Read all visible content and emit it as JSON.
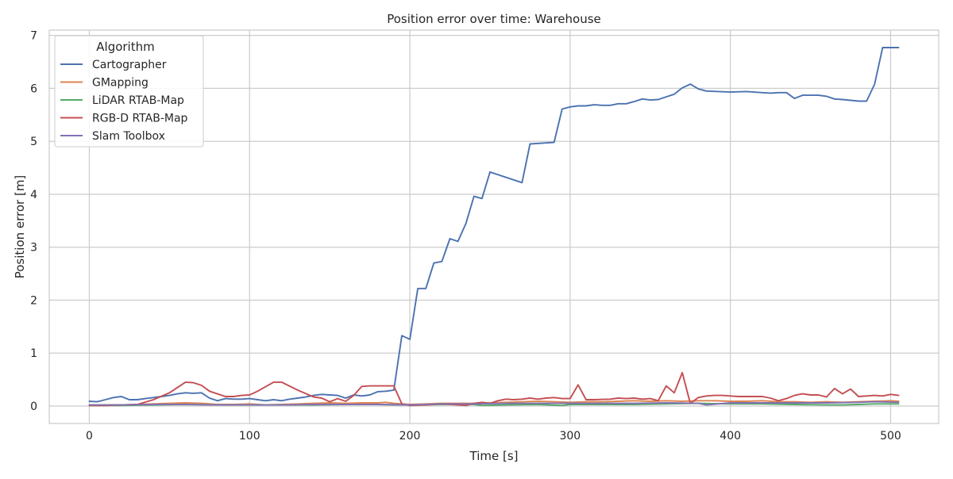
{
  "chart_data": {
    "type": "line",
    "title": "Position error over time: Warehouse",
    "xlabel": "Time [s]",
    "ylabel": "Position error [m]",
    "xlim": [
      -25,
      530
    ],
    "ylim": [
      -0.33,
      7.1
    ],
    "xticks": [
      0,
      100,
      200,
      300,
      400,
      500
    ],
    "yticks": [
      0,
      1,
      2,
      3,
      4,
      5,
      6,
      7
    ],
    "grid": true,
    "legend": {
      "title": "Algorithm",
      "position": "top-left"
    },
    "series": [
      {
        "name": "Cartographer",
        "color": "#4c72b0",
        "points": [
          [
            0,
            0.09
          ],
          [
            5,
            0.08
          ],
          [
            10,
            0.12
          ],
          [
            15,
            0.16
          ],
          [
            20,
            0.18
          ],
          [
            25,
            0.12
          ],
          [
            30,
            0.12
          ],
          [
            35,
            0.14
          ],
          [
            40,
            0.16
          ],
          [
            45,
            0.18
          ],
          [
            50,
            0.2
          ],
          [
            55,
            0.23
          ],
          [
            60,
            0.25
          ],
          [
            65,
            0.24
          ],
          [
            70,
            0.25
          ],
          [
            75,
            0.15
          ],
          [
            80,
            0.1
          ],
          [
            85,
            0.14
          ],
          [
            90,
            0.13
          ],
          [
            95,
            0.13
          ],
          [
            100,
            0.14
          ],
          [
            105,
            0.12
          ],
          [
            110,
            0.1
          ],
          [
            115,
            0.12
          ],
          [
            120,
            0.1
          ],
          [
            125,
            0.13
          ],
          [
            130,
            0.15
          ],
          [
            135,
            0.17
          ],
          [
            140,
            0.2
          ],
          [
            145,
            0.22
          ],
          [
            150,
            0.21
          ],
          [
            155,
            0.2
          ],
          [
            160,
            0.15
          ],
          [
            165,
            0.21
          ],
          [
            170,
            0.19
          ],
          [
            175,
            0.21
          ],
          [
            180,
            0.27
          ],
          [
            185,
            0.28
          ],
          [
            190,
            0.3
          ],
          [
            195,
            1.33
          ],
          [
            200,
            1.26
          ],
          [
            205,
            2.22
          ],
          [
            210,
            2.22
          ],
          [
            215,
            2.7
          ],
          [
            220,
            2.73
          ],
          [
            225,
            3.16
          ],
          [
            230,
            3.11
          ],
          [
            235,
            3.45
          ],
          [
            240,
            3.96
          ],
          [
            245,
            3.92
          ],
          [
            250,
            4.42
          ],
          [
            270,
            4.22
          ],
          [
            275,
            4.95
          ],
          [
            285,
            4.97
          ],
          [
            290,
            4.98
          ],
          [
            295,
            5.61
          ],
          [
            300,
            5.65
          ],
          [
            305,
            5.67
          ],
          [
            310,
            5.67
          ],
          [
            315,
            5.69
          ],
          [
            320,
            5.68
          ],
          [
            325,
            5.68
          ],
          [
            330,
            5.71
          ],
          [
            335,
            5.71
          ],
          [
            340,
            5.75
          ],
          [
            345,
            5.8
          ],
          [
            350,
            5.78
          ],
          [
            355,
            5.79
          ],
          [
            360,
            5.84
          ],
          [
            365,
            5.89
          ],
          [
            370,
            6.01
          ],
          [
            375,
            6.08
          ],
          [
            380,
            5.99
          ],
          [
            385,
            5.95
          ],
          [
            400,
            5.93
          ],
          [
            410,
            5.94
          ],
          [
            420,
            5.92
          ],
          [
            425,
            5.91
          ],
          [
            430,
            5.92
          ],
          [
            435,
            5.92
          ],
          [
            440,
            5.81
          ],
          [
            445,
            5.87
          ],
          [
            455,
            5.87
          ],
          [
            460,
            5.85
          ],
          [
            465,
            5.8
          ],
          [
            470,
            5.79
          ],
          [
            480,
            5.76
          ],
          [
            485,
            5.76
          ],
          [
            490,
            6.08
          ],
          [
            495,
            6.77
          ],
          [
            505,
            6.77
          ]
        ]
      },
      {
        "name": "GMapping",
        "color": "#dd8452",
        "points": [
          [
            0,
            0.01
          ],
          [
            10,
            0.02
          ],
          [
            20,
            0.02
          ],
          [
            30,
            0.03
          ],
          [
            40,
            0.04
          ],
          [
            50,
            0.05
          ],
          [
            60,
            0.06
          ],
          [
            70,
            0.05
          ],
          [
            80,
            0.03
          ],
          [
            90,
            0.03
          ],
          [
            100,
            0.04
          ],
          [
            110,
            0.02
          ],
          [
            120,
            0.03
          ],
          [
            130,
            0.04
          ],
          [
            140,
            0.05
          ],
          [
            150,
            0.06
          ],
          [
            160,
            0.05
          ],
          [
            170,
            0.06
          ],
          [
            180,
            0.06
          ],
          [
            185,
            0.07
          ],
          [
            190,
            0.05
          ],
          [
            200,
            0.03
          ],
          [
            210,
            0.04
          ],
          [
            220,
            0.05
          ],
          [
            230,
            0.05
          ],
          [
            240,
            0.05
          ],
          [
            250,
            0.06
          ],
          [
            260,
            0.07
          ],
          [
            270,
            0.08
          ],
          [
            280,
            0.09
          ],
          [
            290,
            0.08
          ],
          [
            300,
            0.07
          ],
          [
            310,
            0.08
          ],
          [
            320,
            0.08
          ],
          [
            330,
            0.09
          ],
          [
            340,
            0.1
          ],
          [
            350,
            0.09
          ],
          [
            360,
            0.1
          ],
          [
            370,
            0.09
          ],
          [
            380,
            0.1
          ],
          [
            390,
            0.1
          ],
          [
            400,
            0.09
          ],
          [
            410,
            0.09
          ],
          [
            420,
            0.1
          ],
          [
            430,
            0.08
          ],
          [
            440,
            0.08
          ],
          [
            450,
            0.07
          ],
          [
            460,
            0.08
          ],
          [
            470,
            0.07
          ],
          [
            480,
            0.08
          ],
          [
            490,
            0.09
          ],
          [
            500,
            0.1
          ],
          [
            505,
            0.09
          ]
        ]
      },
      {
        "name": "LiDAR RTAB-Map",
        "color": "#55a868",
        "points": [
          [
            0,
            0.01
          ],
          [
            20,
            0.01
          ],
          [
            40,
            0.02
          ],
          [
            60,
            0.03
          ],
          [
            80,
            0.02
          ],
          [
            100,
            0.02
          ],
          [
            120,
            0.02
          ],
          [
            140,
            0.02
          ],
          [
            160,
            0.03
          ],
          [
            180,
            0.03
          ],
          [
            200,
            0.02
          ],
          [
            220,
            0.03
          ],
          [
            240,
            0.03
          ],
          [
            245,
            0.01
          ],
          [
            260,
            0.02
          ],
          [
            280,
            0.03
          ],
          [
            295,
            0.01
          ],
          [
            300,
            0.03
          ],
          [
            320,
            0.03
          ],
          [
            340,
            0.03
          ],
          [
            360,
            0.04
          ],
          [
            380,
            0.05
          ],
          [
            400,
            0.04
          ],
          [
            420,
            0.04
          ],
          [
            440,
            0.03
          ],
          [
            460,
            0.02
          ],
          [
            470,
            0.02
          ],
          [
            480,
            0.03
          ],
          [
            490,
            0.04
          ],
          [
            505,
            0.04
          ]
        ]
      },
      {
        "name": "RGB-D RTAB-Map",
        "color": "#c44e52",
        "points": [
          [
            0,
            0.01
          ],
          [
            10,
            0.01
          ],
          [
            20,
            0.02
          ],
          [
            30,
            0.03
          ],
          [
            40,
            0.12
          ],
          [
            50,
            0.25
          ],
          [
            60,
            0.45
          ],
          [
            65,
            0.44
          ],
          [
            70,
            0.39
          ],
          [
            75,
            0.28
          ],
          [
            85,
            0.18
          ],
          [
            90,
            0.18
          ],
          [
            95,
            0.2
          ],
          [
            100,
            0.21
          ],
          [
            105,
            0.28
          ],
          [
            115,
            0.45
          ],
          [
            120,
            0.45
          ],
          [
            130,
            0.3
          ],
          [
            140,
            0.17
          ],
          [
            145,
            0.15
          ],
          [
            150,
            0.08
          ],
          [
            155,
            0.14
          ],
          [
            160,
            0.09
          ],
          [
            165,
            0.2
          ],
          [
            170,
            0.37
          ],
          [
            175,
            0.38
          ],
          [
            190,
            0.38
          ],
          [
            195,
            0.04
          ],
          [
            200,
            0.01
          ],
          [
            210,
            0.02
          ],
          [
            220,
            0.04
          ],
          [
            230,
            0.02
          ],
          [
            235,
            0.01
          ],
          [
            240,
            0.05
          ],
          [
            245,
            0.07
          ],
          [
            250,
            0.05
          ],
          [
            255,
            0.1
          ],
          [
            260,
            0.13
          ],
          [
            265,
            0.12
          ],
          [
            270,
            0.13
          ],
          [
            275,
            0.15
          ],
          [
            280,
            0.13
          ],
          [
            285,
            0.15
          ],
          [
            290,
            0.16
          ],
          [
            295,
            0.14
          ],
          [
            300,
            0.14
          ],
          [
            305,
            0.4
          ],
          [
            310,
            0.12
          ],
          [
            315,
            0.12
          ],
          [
            325,
            0.13
          ],
          [
            330,
            0.15
          ],
          [
            335,
            0.14
          ],
          [
            340,
            0.15
          ],
          [
            345,
            0.13
          ],
          [
            350,
            0.14
          ],
          [
            355,
            0.1
          ],
          [
            360,
            0.38
          ],
          [
            365,
            0.25
          ],
          [
            370,
            0.63
          ],
          [
            375,
            0.05
          ],
          [
            380,
            0.16
          ],
          [
            385,
            0.19
          ],
          [
            390,
            0.2
          ],
          [
            395,
            0.2
          ],
          [
            400,
            0.19
          ],
          [
            405,
            0.18
          ],
          [
            410,
            0.18
          ],
          [
            420,
            0.18
          ],
          [
            425,
            0.15
          ],
          [
            430,
            0.1
          ],
          [
            435,
            0.14
          ],
          [
            440,
            0.2
          ],
          [
            445,
            0.23
          ],
          [
            450,
            0.21
          ],
          [
            455,
            0.21
          ],
          [
            460,
            0.17
          ],
          [
            465,
            0.33
          ],
          [
            470,
            0.23
          ],
          [
            475,
            0.32
          ],
          [
            480,
            0.18
          ],
          [
            485,
            0.19
          ],
          [
            490,
            0.2
          ],
          [
            495,
            0.19
          ],
          [
            500,
            0.22
          ],
          [
            505,
            0.2
          ]
        ]
      },
      {
        "name": "Slam Toolbox",
        "color": "#8172b3",
        "points": [
          [
            0,
            0.02
          ],
          [
            20,
            0.02
          ],
          [
            40,
            0.03
          ],
          [
            60,
            0.03
          ],
          [
            80,
            0.02
          ],
          [
            100,
            0.02
          ],
          [
            120,
            0.02
          ],
          [
            140,
            0.03
          ],
          [
            160,
            0.03
          ],
          [
            180,
            0.03
          ],
          [
            200,
            0.02
          ],
          [
            220,
            0.04
          ],
          [
            240,
            0.04
          ],
          [
            260,
            0.05
          ],
          [
            280,
            0.05
          ],
          [
            300,
            0.05
          ],
          [
            320,
            0.05
          ],
          [
            340,
            0.05
          ],
          [
            360,
            0.06
          ],
          [
            380,
            0.05
          ],
          [
            385,
            0.02
          ],
          [
            400,
            0.06
          ],
          [
            420,
            0.06
          ],
          [
            440,
            0.06
          ],
          [
            460,
            0.06
          ],
          [
            480,
            0.07
          ],
          [
            490,
            0.08
          ],
          [
            505,
            0.07
          ]
        ]
      }
    ]
  }
}
